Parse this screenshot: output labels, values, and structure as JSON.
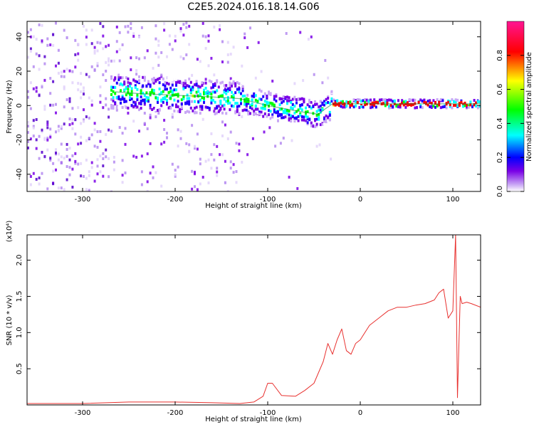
{
  "title": "C2E5.2024.016.18.14.G06",
  "chart_data": [
    {
      "type": "heatmap",
      "title": "C2E5.2024.016.18.14.G06",
      "xlabel": "Height of straight line (km)",
      "ylabel": "Frequency (Hz)",
      "xlim": [
        -360,
        130
      ],
      "ylim": [
        -50,
        49
      ],
      "xticks": [
        -300,
        -200,
        -100,
        0,
        100
      ],
      "yticks": [
        -40,
        -20,
        0,
        20,
        40
      ],
      "colorbar": {
        "label": "Normalized spectral amplitude",
        "range": [
          0,
          1
        ],
        "ticks": [
          "0.0",
          "0.2",
          "0.4",
          "0.6",
          "0.8"
        ],
        "colors": [
          "#ffffff",
          "#7a00e6",
          "#0000ff",
          "#00ffff",
          "#00ff00",
          "#ffff00",
          "#ff0000",
          "#ff1493"
        ]
      },
      "ridge": {
        "x": [
          -265,
          -240,
          -200,
          -160,
          -130,
          -100,
          -80,
          -60,
          -45,
          -38,
          -30,
          -20,
          0,
          50,
          100,
          130
        ],
        "y": [
          8,
          7,
          6,
          5,
          4,
          0,
          -2,
          -4,
          -5,
          -2,
          1,
          1,
          1,
          1,
          1,
          1
        ]
      }
    },
    {
      "type": "line",
      "xlabel": "Height of straight line (km)",
      "ylabel": "SNR (10 * v/v)",
      "scale_label": "(x10⁴)",
      "xlim": [
        -360,
        130
      ],
      "ylim": [
        0,
        2.35
      ],
      "xticks": [
        -300,
        -200,
        -100,
        0,
        100
      ],
      "yticks": [
        "0.5",
        "1.0",
        "1.5",
        "2.0"
      ],
      "ytick_values": [
        0.5,
        1.0,
        1.5,
        2.0
      ],
      "grid": false,
      "series": [
        {
          "color": "#e8312f",
          "x": [
            -360,
            -300,
            -250,
            -200,
            -160,
            -130,
            -115,
            -105,
            -100,
            -95,
            -85,
            -70,
            -60,
            -50,
            -40,
            -35,
            -30,
            -25,
            -20,
            -15,
            -10,
            -5,
            0,
            10,
            20,
            30,
            40,
            50,
            60,
            70,
            80,
            85,
            90,
            95,
            100,
            103,
            105,
            108,
            110,
            115,
            120,
            130
          ],
          "y": [
            0.02,
            0.02,
            0.04,
            0.04,
            0.03,
            0.02,
            0.04,
            0.12,
            0.3,
            0.3,
            0.13,
            0.12,
            0.2,
            0.3,
            0.6,
            0.85,
            0.7,
            0.9,
            1.05,
            0.75,
            0.7,
            0.85,
            0.9,
            1.1,
            1.2,
            1.3,
            1.35,
            1.35,
            1.38,
            1.4,
            1.45,
            1.55,
            1.6,
            1.2,
            1.3,
            2.35,
            0.1,
            1.5,
            1.4,
            1.42,
            1.4,
            1.35
          ]
        }
      ]
    }
  ]
}
